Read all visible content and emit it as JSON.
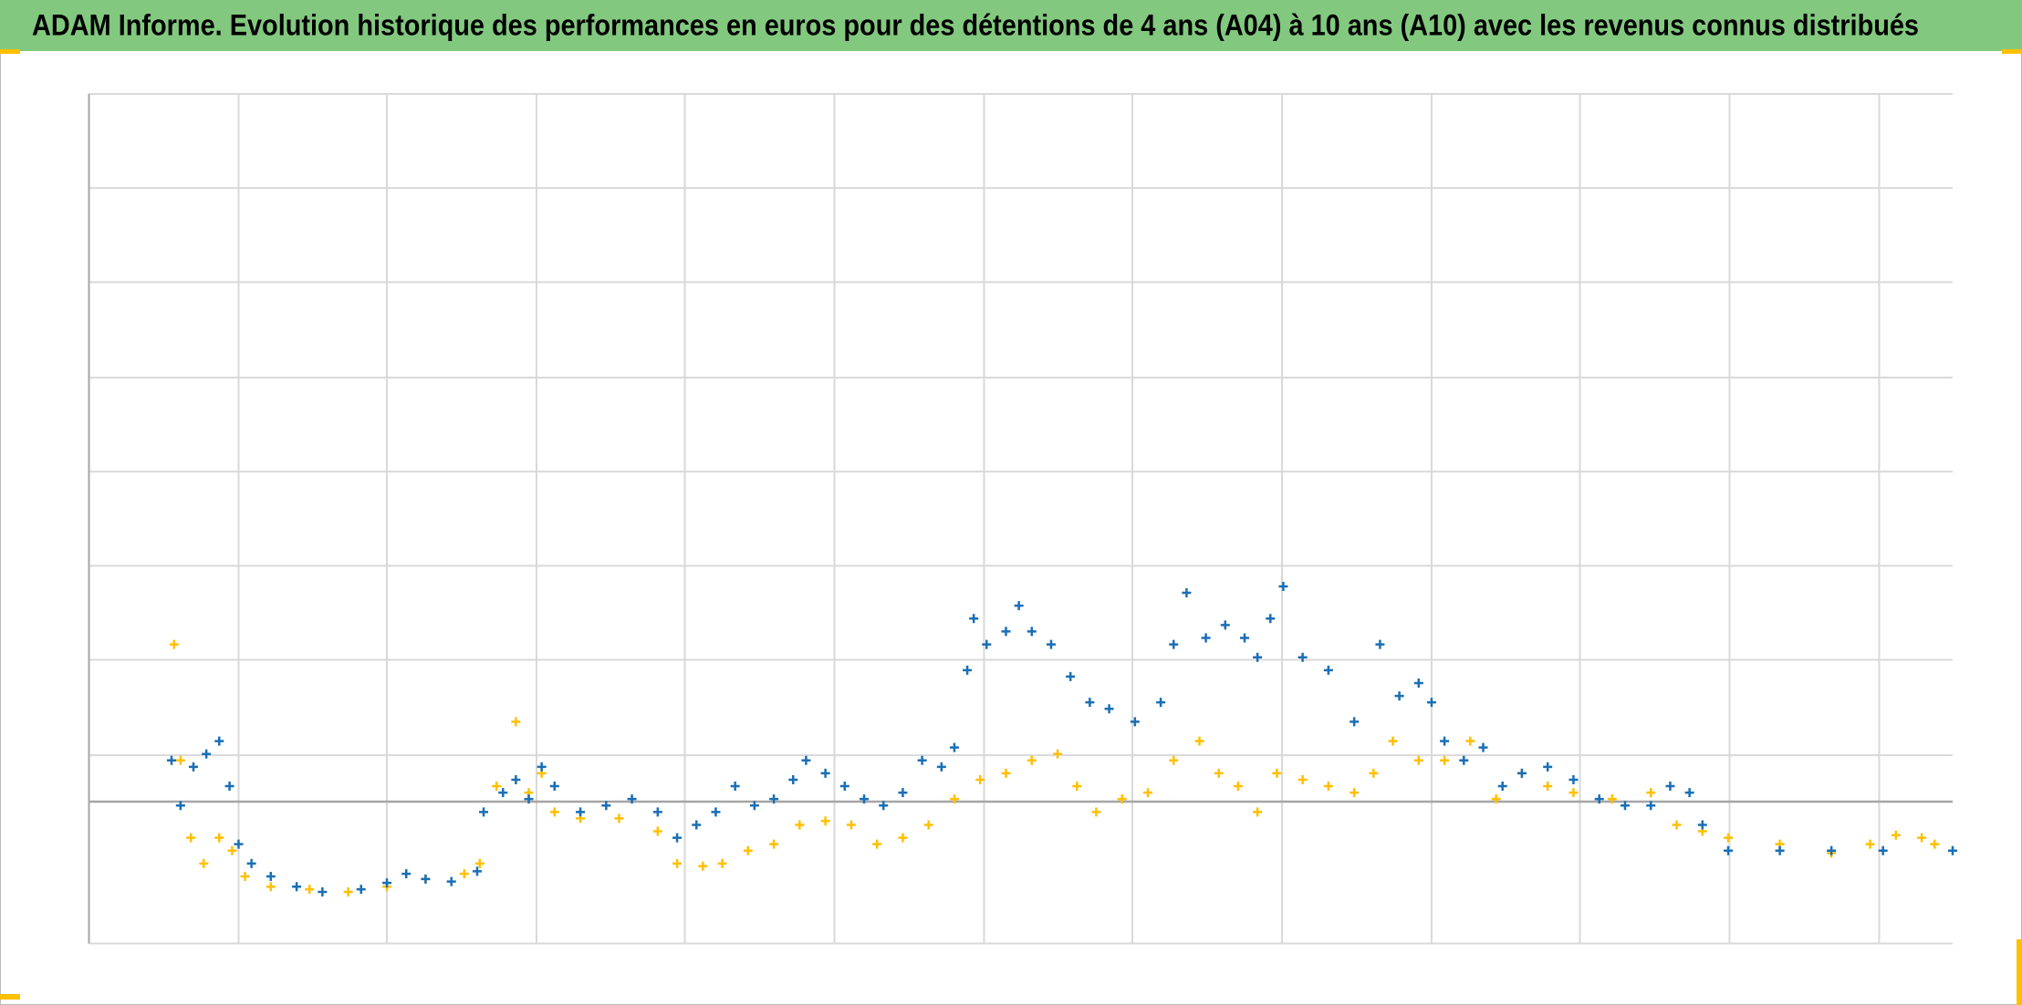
{
  "chart_data": {
    "type": "scatter",
    "title": "ADAM Informe. Evolution historique des performances en euros pour des détentions de 4 ans (A04) à 10 ans (A10) avec les revenus connus distribués",
    "xlim": [
      69,
      1514
    ],
    "xticks": [
      69,
      185,
      300,
      416,
      531,
      647,
      763,
      878,
      994,
      1110,
      1225,
      1341,
      1457
    ],
    "ylim": [
      -110,
      549
    ],
    "yticks": [
      -110,
      36,
      110,
      183,
      256,
      329,
      403,
      476,
      549
    ],
    "grid": true,
    "series": [
      {
        "color": "#ffc000",
        "x": [
          135,
          140,
          148,
          158,
          170,
          180,
          190,
          210,
          240,
          270,
          300,
          330,
          360,
          372,
          385,
          400,
          410,
          420,
          430,
          450,
          480,
          510,
          525,
          545,
          560,
          580,
          600,
          620,
          640,
          660,
          680,
          700,
          720,
          740,
          760,
          780,
          800,
          820,
          835,
          850,
          870,
          890,
          910,
          930,
          945,
          960,
          975,
          990,
          1010,
          1030,
          1050,
          1065,
          1080,
          1100,
          1120,
          1140,
          1160,
          1180,
          1200,
          1220,
          1250,
          1280,
          1300,
          1320,
          1340,
          1380,
          1420,
          1450,
          1470,
          1490,
          1500
        ],
        "values": [
          122,
          32,
          -28,
          -48,
          -28,
          -38,
          -58,
          -66,
          -68,
          -70,
          -66,
          -60,
          -56,
          -48,
          12,
          62,
          7,
          22,
          -8,
          -13,
          -13,
          -23,
          -48,
          -50,
          -48,
          -38,
          -33,
          -18,
          -15,
          -18,
          -33,
          -28,
          -18,
          2,
          17,
          22,
          32,
          37,
          12,
          -8,
          2,
          7,
          32,
          47,
          22,
          12,
          -8,
          22,
          17,
          12,
          7,
          22,
          47,
          32,
          32,
          47,
          2,
          22,
          12,
          7,
          2,
          7,
          -18,
          -23,
          -28,
          -33,
          -40,
          -33,
          -26,
          -28,
          -33
        ]
      },
      {
        "color": "#1a6fb5",
        "x": [
          133,
          140,
          150,
          160,
          170,
          178,
          185,
          195,
          210,
          230,
          250,
          280,
          300,
          315,
          330,
          350,
          370,
          375,
          390,
          400,
          410,
          420,
          430,
          450,
          470,
          490,
          510,
          525,
          540,
          555,
          570,
          585,
          600,
          615,
          625,
          640,
          655,
          670,
          685,
          700,
          715,
          730,
          740,
          750,
          755,
          765,
          780,
          790,
          800,
          815,
          830,
          845,
          860,
          880,
          900,
          910,
          920,
          935,
          950,
          965,
          975,
          985,
          995,
          1010,
          1030,
          1050,
          1070,
          1085,
          1100,
          1110,
          1120,
          1135,
          1150,
          1165,
          1180,
          1200,
          1220,
          1240,
          1260,
          1280,
          1295,
          1310,
          1320,
          1340,
          1380,
          1420,
          1460,
          1514
        ],
        "values": [
          32,
          -3,
          27,
          37,
          47,
          12,
          -33,
          -48,
          -58,
          -66,
          -70,
          -68,
          -63,
          -56,
          -60,
          -62,
          -54,
          -8,
          7,
          17,
          2,
          27,
          12,
          -8,
          -3,
          2,
          -8,
          -28,
          -18,
          -8,
          12,
          -3,
          2,
          17,
          32,
          22,
          12,
          2,
          -3,
          7,
          32,
          27,
          42,
          102,
          142,
          122,
          132,
          152,
          132,
          122,
          97,
          77,
          72,
          62,
          77,
          122,
          162,
          127,
          137,
          127,
          112,
          142,
          167,
          112,
          102,
          62,
          122,
          82,
          92,
          77,
          47,
          32,
          42,
          12,
          22,
          27,
          17,
          2,
          -3,
          -3,
          12,
          7,
          -18,
          -38,
          -38,
          -38,
          -38,
          -38
        ]
      }
    ]
  }
}
